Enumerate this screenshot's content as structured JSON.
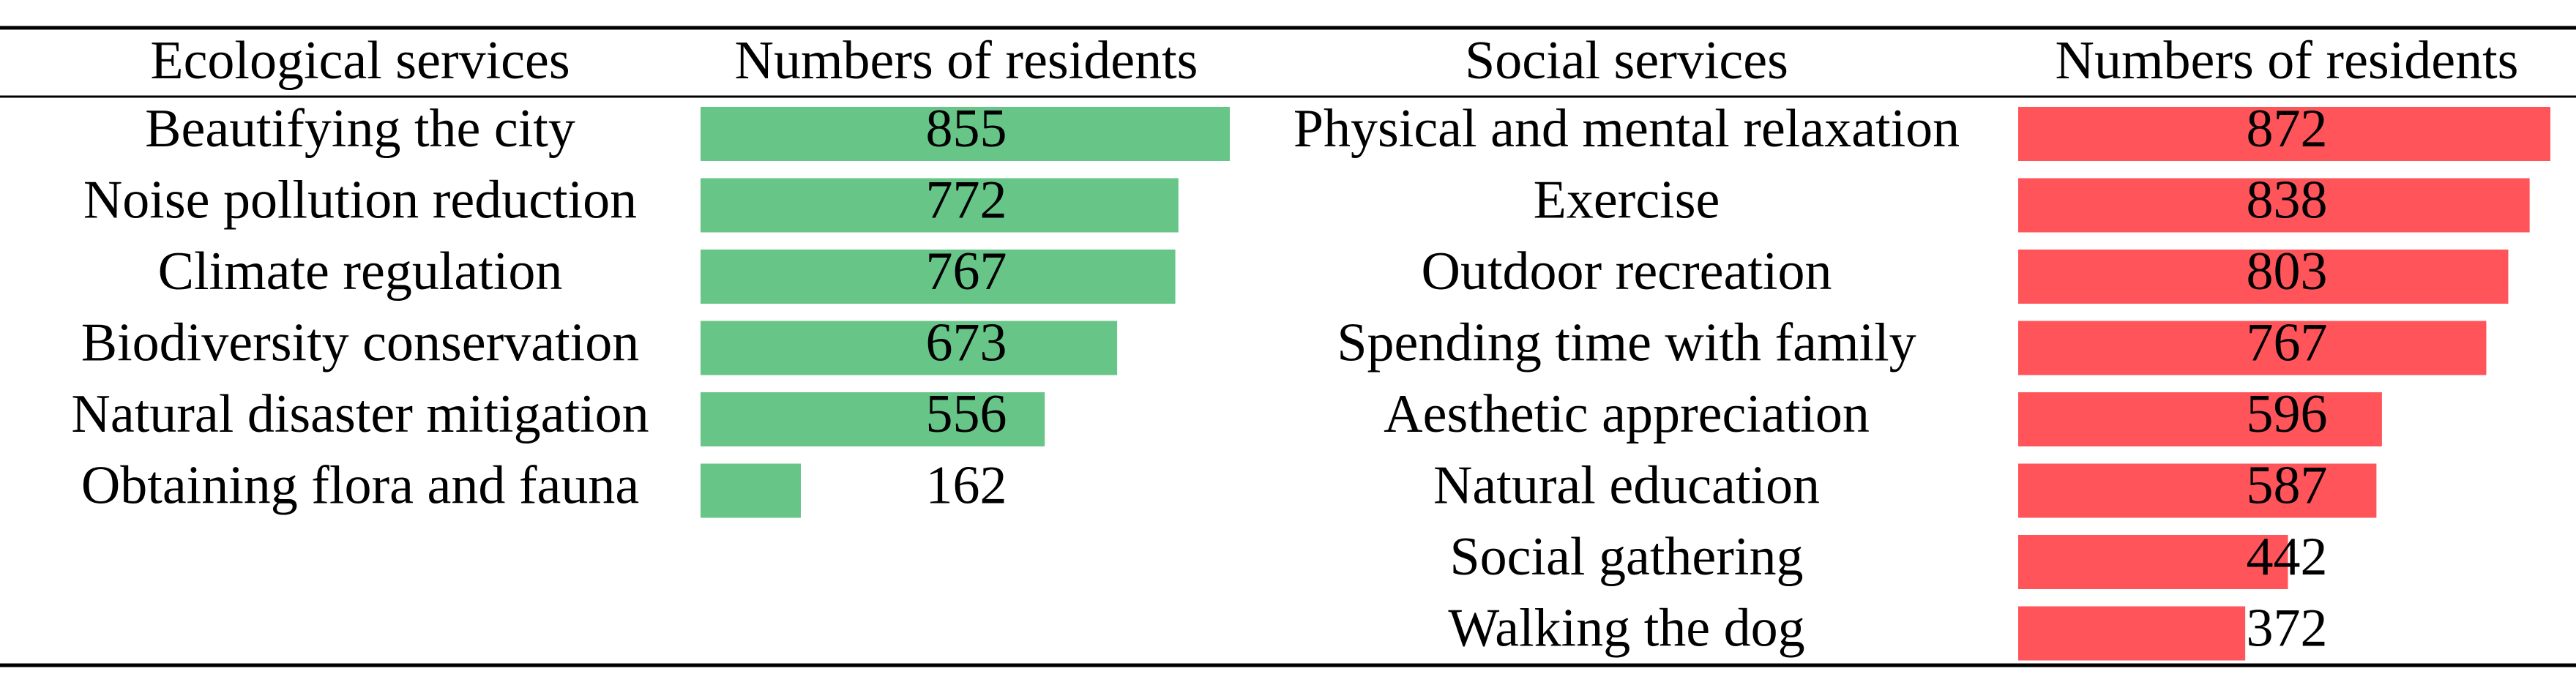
{
  "colors": {
    "ecological_bar": "#66C587",
    "social_bar": "#FF545A",
    "rule": "#000000"
  },
  "chart_data": [
    {
      "type": "bar",
      "orientation": "horizontal",
      "category_header": "Ecological services",
      "value_header": "Numbers of residents",
      "categories": [
        "Beautifying the city",
        "Noise pollution reduction",
        "Climate regulation",
        "Biodiversity conservation",
        "Natural disaster mitigation",
        "Obtaining flora and fauna"
      ],
      "values": [
        855,
        772,
        767,
        673,
        556,
        162
      ],
      "value_labels": [
        "855",
        "772",
        "767",
        "673",
        "556",
        "162"
      ],
      "xlim": [
        0,
        855
      ],
      "color": "#66C587"
    },
    {
      "type": "bar",
      "orientation": "horizontal",
      "category_header": "Social services",
      "value_header": "Numbers of residents",
      "categories": [
        "Physical and mental relaxation",
        "Exercise",
        "Outdoor recreation",
        "Spending time with family",
        "Aesthetic appreciation",
        "Natural education",
        "Social gathering",
        "Walking the dog"
      ],
      "values": [
        872,
        838,
        803,
        767,
        596,
        587,
        442,
        372
      ],
      "value_labels": [
        "872",
        "838",
        "803",
        "767",
        "596",
        "587",
        "442",
        "372"
      ],
      "xlim": [
        0,
        872
      ],
      "color": "#FF545A"
    }
  ]
}
